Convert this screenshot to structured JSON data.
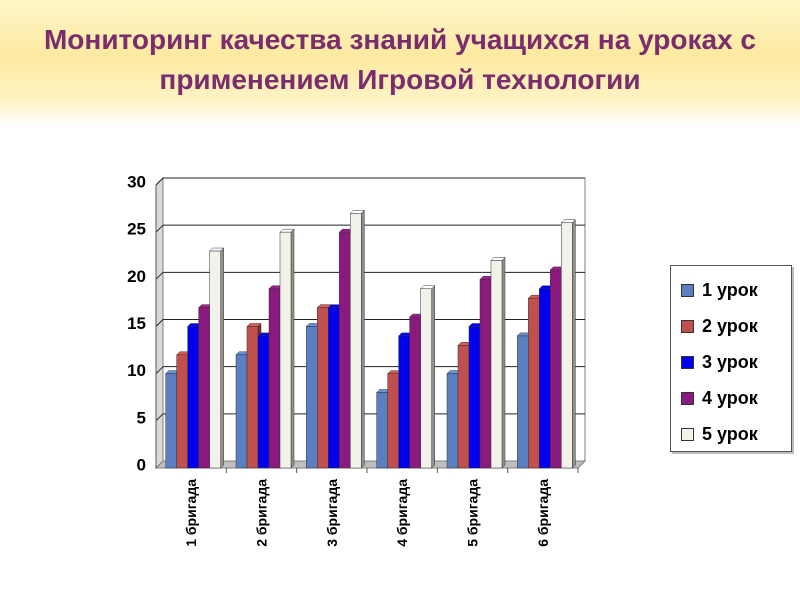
{
  "slide": {
    "title_line1": "Мониторинг качества знаний учащихся на уроках с",
    "title_line2": "применением  Игровой  технологии",
    "title_color": "#7a2c6e"
  },
  "chart_data": {
    "type": "bar",
    "title": "",
    "xlabel": "",
    "ylabel": "",
    "ylim": [
      0,
      30
    ],
    "yticks": [
      0,
      5,
      10,
      15,
      20,
      25,
      30
    ],
    "grid": true,
    "legend_position": "right",
    "categories": [
      "1 бригада",
      "2 бригада",
      "3 бригада",
      "4 бригада",
      "5 бригада",
      "6 бригада"
    ],
    "series": [
      {
        "name": "1 урок",
        "color": "#5b7fc0",
        "values": [
          10,
          12,
          15,
          8,
          10,
          14
        ]
      },
      {
        "name": "2 урок",
        "color": "#c0504d",
        "values": [
          12,
          15,
          17,
          10,
          13,
          18
        ]
      },
      {
        "name": "3 урок",
        "color": "#0000ee",
        "values": [
          15,
          14,
          17,
          14,
          15,
          19
        ]
      },
      {
        "name": "4 урок",
        "color": "#8b1a7e",
        "values": [
          17,
          19,
          25,
          16,
          20,
          21
        ]
      },
      {
        "name": "5 урок",
        "color": "#f2f2ea",
        "values": [
          23,
          25,
          27,
          19,
          22,
          26
        ]
      }
    ]
  }
}
